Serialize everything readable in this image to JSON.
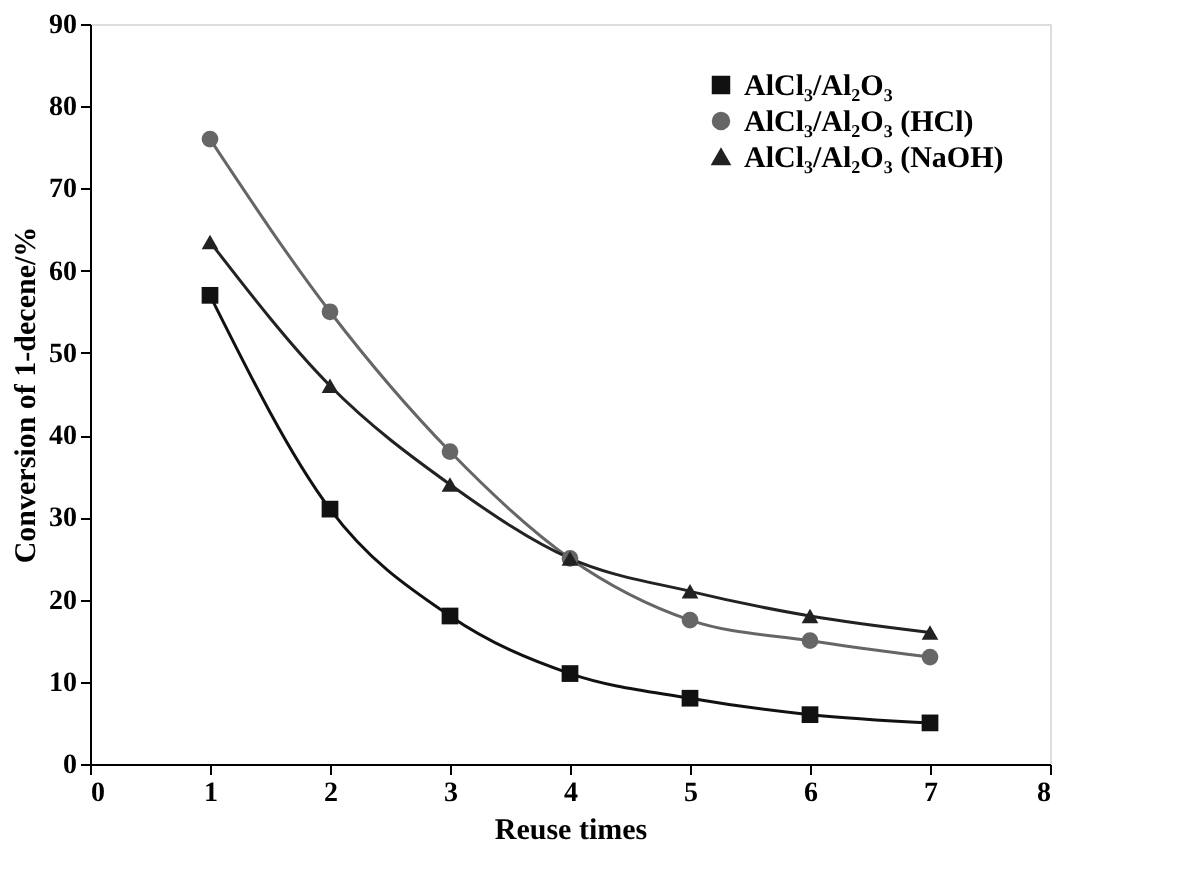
{
  "chart_data": {
    "type": "line",
    "xlabel": "Reuse times",
    "ylabel": "Conversion of 1-decene/%",
    "x": [
      1,
      2,
      3,
      4,
      5,
      6,
      7
    ],
    "series": [
      {
        "name": "AlCl₃/Al₂O₃",
        "color": "#111111",
        "marker": "square",
        "values": [
          57,
          31,
          18,
          11,
          8,
          6,
          5
        ]
      },
      {
        "name": "AlCl₃/Al₂O₃ (HCl)",
        "color": "#666666",
        "marker": "circle",
        "values": [
          76,
          55,
          38,
          25,
          17.5,
          15,
          13
        ]
      },
      {
        "name": "AlCl₃/Al₂O₃ (NaOH)",
        "color": "#222222",
        "marker": "triangle",
        "values": [
          63.5,
          46,
          34,
          25,
          21,
          18,
          16
        ]
      }
    ],
    "xlim": [
      0,
      8
    ],
    "xticks": [
      0,
      1,
      2,
      3,
      4,
      5,
      6,
      7,
      8
    ],
    "ylim": [
      0,
      90
    ],
    "yticks": [
      0,
      10,
      20,
      30,
      40,
      50,
      60,
      70,
      80,
      90
    ],
    "grid": false,
    "legend": "top right",
    "line_style": "solid"
  }
}
